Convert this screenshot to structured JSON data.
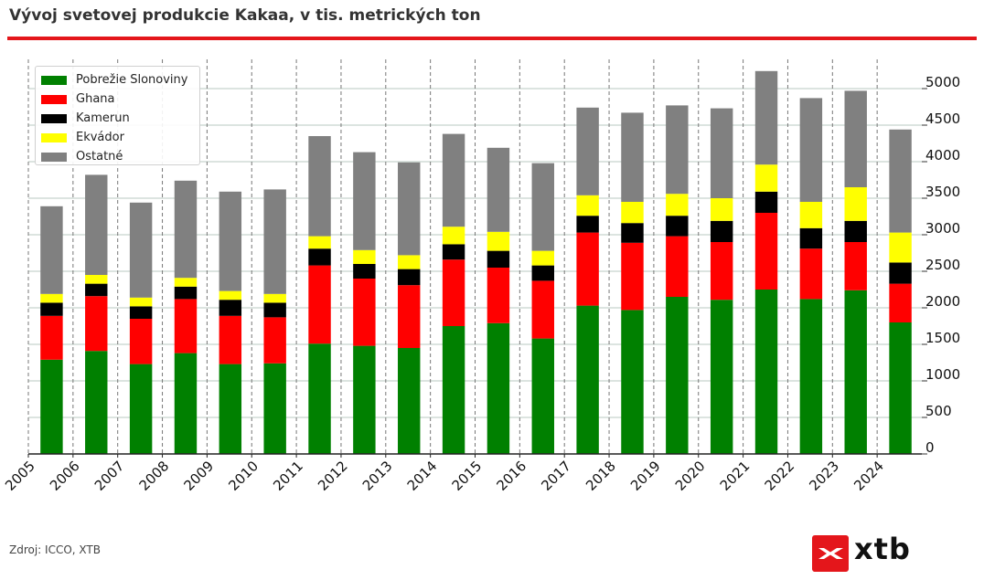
{
  "header": {
    "title": "Vývoj svetovej produkcie Kakaa, v tis. metrických ton"
  },
  "footer": {
    "source": "Zdroj: ICCO, XTB",
    "logo_text": "xtb"
  },
  "colors": {
    "accent_rule": "#e4161b",
    "logo_badge": "#e4161b"
  },
  "chart_data": {
    "type": "bar",
    "stacked": true,
    "categories": [
      "2005",
      "2006",
      "2007",
      "2008",
      "2009",
      "2010",
      "2011",
      "2012",
      "2013",
      "2014",
      "2015",
      "2016",
      "2017",
      "2018",
      "2019",
      "2020",
      "2021",
      "2022",
      "2023",
      "2024"
    ],
    "series": [
      {
        "name": "Pobrežie Slonoviny",
        "color": "#008000",
        "values": [
          1290,
          1410,
          1230,
          1380,
          1230,
          1240,
          1510,
          1480,
          1450,
          1750,
          1790,
          1580,
          2030,
          1970,
          2150,
          2110,
          2250,
          2120,
          2240,
          1800
        ]
      },
      {
        "name": "Ghana",
        "color": "#ff0000",
        "values": [
          600,
          750,
          620,
          740,
          660,
          630,
          1070,
          920,
          860,
          910,
          760,
          790,
          1000,
          920,
          830,
          790,
          1050,
          690,
          660,
          530
        ]
      },
      {
        "name": "Kamerun",
        "color": "#000000",
        "values": [
          180,
          170,
          170,
          170,
          220,
          200,
          230,
          200,
          220,
          210,
          230,
          210,
          230,
          270,
          280,
          290,
          290,
          280,
          290,
          290
        ]
      },
      {
        "name": "Ekvádor",
        "color": "#ffff00",
        "values": [
          120,
          120,
          120,
          120,
          120,
          120,
          170,
          190,
          190,
          240,
          260,
          200,
          280,
          290,
          300,
          310,
          370,
          360,
          460,
          410
        ]
      },
      {
        "name": "Ostatné",
        "color": "#808080",
        "values": [
          1200,
          1370,
          1300,
          1330,
          1360,
          1430,
          1370,
          1340,
          1270,
          1270,
          1150,
          1200,
          1200,
          1220,
          1210,
          1230,
          1280,
          1420,
          1320,
          1410
        ]
      }
    ],
    "y_ticks": [
      0,
      500,
      1000,
      1500,
      2000,
      2500,
      3000,
      3500,
      4000,
      4500,
      5000
    ],
    "ylim": [
      0,
      5400
    ],
    "y_axis_side": "right",
    "grid": {
      "horizontal": true,
      "vertical": "dashed"
    },
    "legend_position": "top-left",
    "xlabel": "",
    "ylabel": ""
  }
}
